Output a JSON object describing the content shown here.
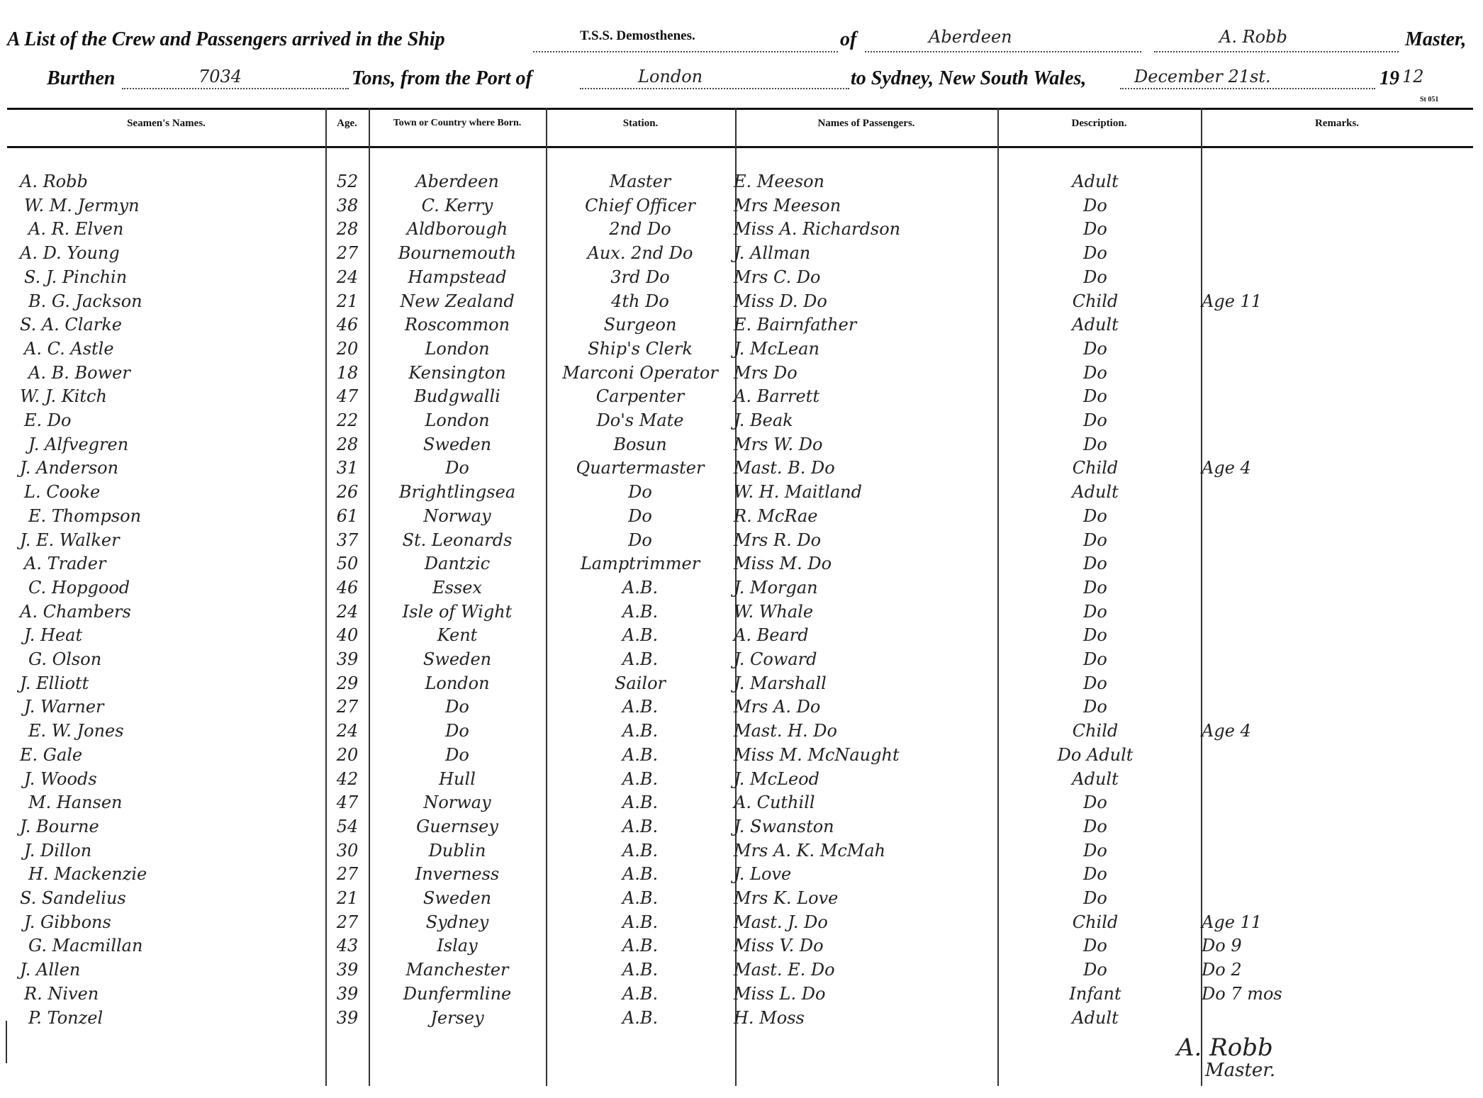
{
  "header": {
    "title": "A List of the Crew and Passengers arrived in the Ship",
    "ship": "T.S.S. Demosthenes.",
    "of_label": "of",
    "port_of_registry": "Aberdeen",
    "master_name": "A. Robb",
    "master_label": "Master,",
    "burthen_label": "Burthen",
    "tonnage": "7034",
    "tons_label": "Tons, from the Port of",
    "from_port": "London",
    "to_label": "to Sydney, New South Wales,",
    "date": "December 21st.",
    "year_printed": "19",
    "year_written": "12",
    "form_code": "St 051"
  },
  "table": {
    "columns": [
      "Seamen's Names.",
      "Age.",
      "Town or Country where Born.",
      "Station.",
      "Names of Passengers.",
      "Description.",
      "Remarks."
    ],
    "rows": [
      {
        "seaman": "A. Robb",
        "age": 52,
        "born": "Aberdeen",
        "station": "Master",
        "passenger": "E. Meeson",
        "description": "Adult"
      },
      {
        "seaman": "W. M. Jermyn",
        "age": 38,
        "born": "C. Kerry",
        "station": "Chief Officer",
        "passenger": "Mrs Meeson",
        "description": "Do"
      },
      {
        "seaman": "A. R. Elven",
        "age": 28,
        "born": "Aldborough",
        "station": "2nd Do",
        "passenger": "Miss A. Richardson",
        "description": "Do"
      },
      {
        "seaman": "A. D. Young",
        "age": 27,
        "born": "Bournemouth",
        "station": "Aux. 2nd Do",
        "passenger": "J. Allman",
        "description": "Do"
      },
      {
        "seaman": "S. J. Pinchin",
        "age": 24,
        "born": "Hampstead",
        "station": "3rd Do",
        "passenger": "Mrs C. Do",
        "description": "Do"
      },
      {
        "seaman": "B. G. Jackson",
        "age": 21,
        "born": "New Zealand",
        "station": "4th Do",
        "passenger": "Miss D. Do",
        "description": "Child",
        "remarks": "Age 11"
      },
      {
        "seaman": "S. A. Clarke",
        "age": 46,
        "born": "Roscommon",
        "station": "Surgeon",
        "passenger": "E. Bairnfather",
        "description": "Adult"
      },
      {
        "seaman": "A. C. Astle",
        "age": 20,
        "born": "London",
        "station": "Ship's Clerk",
        "passenger": "J. McLean",
        "description": "Do"
      },
      {
        "seaman": "A. B. Bower",
        "age": 18,
        "born": "Kensington",
        "station": "Marconi Operator",
        "passenger": "Mrs Do",
        "description": "Do"
      },
      {
        "seaman": "W. J. Kitch",
        "age": 47,
        "born": "Budgwalli",
        "station": "Carpenter",
        "passenger": "A. Barrett",
        "description": "Do"
      },
      {
        "seaman": "E. Do",
        "age": 22,
        "born": "London",
        "station": "Do's Mate",
        "passenger": "J. Beak",
        "description": "Do"
      },
      {
        "seaman": "J. Alfvegren",
        "age": 28,
        "born": "Sweden",
        "station": "Bosun",
        "passenger": "Mrs W. Do",
        "description": "Do"
      },
      {
        "seaman": "J. Anderson",
        "age": 31,
        "born": "Do",
        "station": "Quartermaster",
        "passenger": "Mast. B. Do",
        "description": "Child",
        "remarks": "Age 4"
      },
      {
        "seaman": "L. Cooke",
        "age": 26,
        "born": "Brightlingsea",
        "station": "Do",
        "passenger": "W. H. Maitland",
        "description": "Adult"
      },
      {
        "seaman": "E. Thompson",
        "age": 61,
        "born": "Norway",
        "station": "Do",
        "passenger": "R. McRae",
        "description": "Do"
      },
      {
        "seaman": "J. E. Walker",
        "age": 37,
        "born": "St. Leonards",
        "station": "Do",
        "passenger": "Mrs R. Do",
        "description": "Do"
      },
      {
        "seaman": "A. Trader",
        "age": 50,
        "born": "Dantzic",
        "station": "Lamptrimmer",
        "passenger": "Miss M. Do",
        "description": "Do"
      },
      {
        "seaman": "C. Hopgood",
        "age": 46,
        "born": "Essex",
        "station": "A.B.",
        "passenger": "J. Morgan",
        "description": "Do"
      },
      {
        "seaman": "A. Chambers",
        "age": 24,
        "born": "Isle of Wight",
        "station": "A.B.",
        "passenger": "W. Whale",
        "description": "Do"
      },
      {
        "seaman": "J. Heat",
        "age": 40,
        "born": "Kent",
        "station": "A.B.",
        "passenger": "A. Beard",
        "description": "Do"
      },
      {
        "seaman": "G. Olson",
        "age": 39,
        "born": "Sweden",
        "station": "A.B.",
        "passenger": "J. Coward",
        "description": "Do"
      },
      {
        "seaman": "J. Elliott",
        "age": 29,
        "born": "London",
        "station": "Sailor",
        "passenger": "J. Marshall",
        "description": "Do"
      },
      {
        "seaman": "J. Warner",
        "age": 27,
        "born": "Do",
        "station": "A.B.",
        "passenger": "Mrs A. Do",
        "description": "Do"
      },
      {
        "seaman": "E. W. Jones",
        "age": 24,
        "born": "Do",
        "station": "A.B.",
        "passenger": "Mast. H. Do",
        "description": "Child",
        "remarks": "Age 4"
      },
      {
        "seaman": "E. Gale",
        "age": 20,
        "born": "Do",
        "station": "A.B.",
        "passenger": "Miss M. McNaught",
        "description": "Do Adult"
      },
      {
        "seaman": "J. Woods",
        "age": 42,
        "born": "Hull",
        "station": "A.B.",
        "passenger": "J. McLeod",
        "description": "Adult"
      },
      {
        "seaman": "M. Hansen",
        "age": 47,
        "born": "Norway",
        "station": "A.B.",
        "passenger": "A. Cuthill",
        "description": "Do"
      },
      {
        "seaman": "J. Bourne",
        "age": 54,
        "born": "Guernsey",
        "station": "A.B.",
        "passenger": "J. Swanston",
        "description": "Do"
      },
      {
        "seaman": "J. Dillon",
        "age": 30,
        "born": "Dublin",
        "station": "A.B.",
        "passenger": "Mrs A. K. McMah",
        "description": "Do"
      },
      {
        "seaman": "H. Mackenzie",
        "age": 27,
        "born": "Inverness",
        "station": "A.B.",
        "passenger": "J. Love",
        "description": "Do"
      },
      {
        "seaman": "S. Sandelius",
        "age": 21,
        "born": "Sweden",
        "station": "A.B.",
        "passenger": "Mrs K. Love",
        "description": "Do"
      },
      {
        "seaman": "J. Gibbons",
        "age": 27,
        "born": "Sydney",
        "station": "A.B.",
        "passenger": "Mast. J. Do",
        "description": "Child",
        "remarks": "Age 11"
      },
      {
        "seaman": "G. Macmillan",
        "age": 43,
        "born": "Islay",
        "station": "A.B.",
        "passenger": "Miss V. Do",
        "description": "Do",
        "remarks": "Do 9"
      },
      {
        "seaman": "J. Allen",
        "age": 39,
        "born": "Manchester",
        "station": "A.B.",
        "passenger": "Mast. E. Do",
        "description": "Do",
        "remarks": "Do 2"
      },
      {
        "seaman": "R. Niven",
        "age": 39,
        "born": "Dunfermline",
        "station": "A.B.",
        "passenger": "Miss L. Do",
        "description": "Infant",
        "remarks": "Do 7 mos"
      },
      {
        "seaman": "P. Tonzel",
        "age": 39,
        "born": "Jersey",
        "station": "A.B.",
        "passenger": "H. Moss",
        "description": "Adult"
      }
    ]
  },
  "signature": {
    "name": "A. Robb",
    "title": "Master."
  }
}
